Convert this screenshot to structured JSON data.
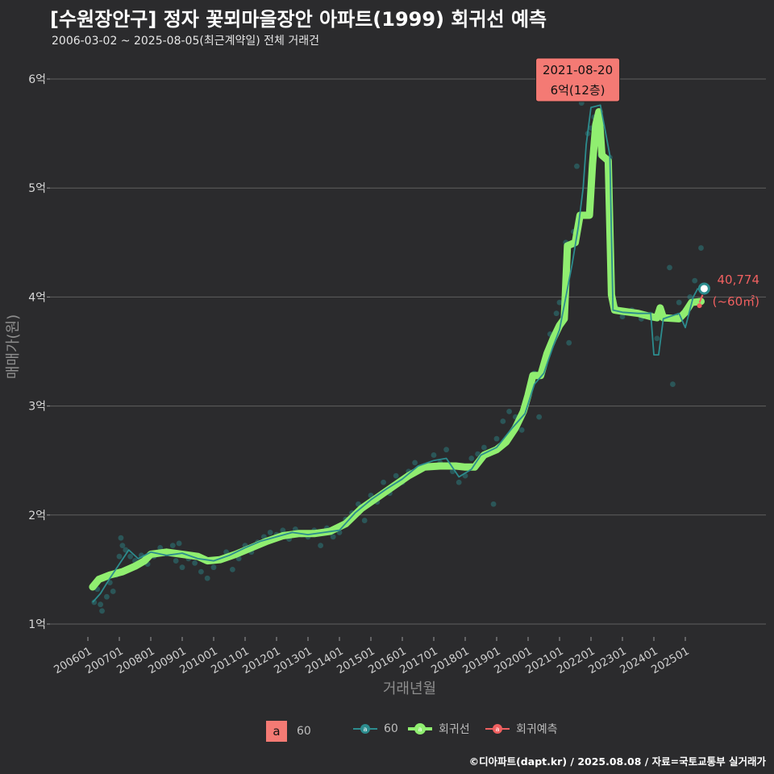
{
  "header": {
    "title": "[수원장안구] 정자 꽃뫼마을장안 아파트(1999) 회귀선 예측",
    "subtitle": "2006-03-02 ~ 2025-08-05(최근계약일) 전체 거래건"
  },
  "footer": {
    "credit": "©디아파트(dapt.kr) / 2025.08.08 / 자료=국토교통부 실거래가"
  },
  "legend": {
    "area_box_label": "a",
    "area_label": "60",
    "series1_label": "60",
    "series2_label": "회귀선",
    "series3_label": "회귀예측"
  },
  "colors": {
    "background": "#2b2b2d",
    "grid": "#5f5f5f",
    "trade_line": "#2c8c8e",
    "regression": "#90ee70",
    "prediction": "#f06060",
    "annotation_fill": "#f47a74"
  },
  "annotation": {
    "date": "2021-08-20",
    "price_text": "6억(12층)",
    "date_value": 2021.63,
    "price_value": 6.0
  },
  "last_point": {
    "value_text": "40,774",
    "area_text": "(~60㎡)",
    "x": 2025.6,
    "y": 4.077
  },
  "chart_data": {
    "type": "line",
    "title": "[수원장안구] 정자 꽃뫼마을장안 아파트(1999) 회귀선 예측",
    "subtitle": "2006-03-02 ~ 2025-08-05(최근계약일) 전체 거래건",
    "xlabel": "거래년월",
    "ylabel": "매매가(원)",
    "x_range": [
      2005.2,
      2027.3
    ],
    "ylim": [
      0.82,
      6.4
    ],
    "y_ticks": [
      1,
      2,
      3,
      4,
      5,
      6
    ],
    "y_tick_labels": [
      "1억",
      "2억",
      "3억",
      "4억",
      "5억",
      "6억"
    ],
    "x_ticks": [
      2006,
      2007,
      2008,
      2009,
      2010,
      2011,
      2012,
      2013,
      2014,
      2015,
      2016,
      2017,
      2018,
      2019,
      2020,
      2021,
      2022,
      2023,
      2024,
      2025
    ],
    "x_tick_labels": [
      "200601",
      "200701",
      "200801",
      "200901",
      "201001",
      "201101",
      "201201",
      "201301",
      "201401",
      "201501",
      "201601",
      "201701",
      "201801",
      "201901",
      "202001",
      "202101",
      "202201",
      "202301",
      "202401",
      "202501"
    ],
    "series": [
      {
        "name": "회귀선",
        "points": [
          [
            2006.15,
            1.34
          ],
          [
            2006.35,
            1.41
          ],
          [
            2006.7,
            1.45
          ],
          [
            2007.1,
            1.48
          ],
          [
            2007.5,
            1.53
          ],
          [
            2007.8,
            1.58
          ],
          [
            2008.0,
            1.64
          ],
          [
            2008.5,
            1.66
          ],
          [
            2009.0,
            1.64
          ],
          [
            2009.5,
            1.62
          ],
          [
            2009.8,
            1.58
          ],
          [
            2010.2,
            1.59
          ],
          [
            2010.7,
            1.64
          ],
          [
            2011.2,
            1.7
          ],
          [
            2011.7,
            1.76
          ],
          [
            2012.2,
            1.81
          ],
          [
            2012.7,
            1.83
          ],
          [
            2013.2,
            1.83
          ],
          [
            2013.7,
            1.85
          ],
          [
            2014.2,
            1.92
          ],
          [
            2014.7,
            2.06
          ],
          [
            2015.2,
            2.16
          ],
          [
            2015.7,
            2.26
          ],
          [
            2016.2,
            2.36
          ],
          [
            2016.7,
            2.44
          ],
          [
            2017.2,
            2.45
          ],
          [
            2017.7,
            2.45
          ],
          [
            2018.0,
            2.44
          ],
          [
            2018.3,
            2.44
          ],
          [
            2018.6,
            2.55
          ],
          [
            2019.0,
            2.6
          ],
          [
            2019.3,
            2.67
          ],
          [
            2019.6,
            2.8
          ],
          [
            2019.85,
            2.95
          ],
          [
            2020.0,
            3.1
          ],
          [
            2020.15,
            3.28
          ],
          [
            2020.4,
            3.28
          ],
          [
            2020.6,
            3.48
          ],
          [
            2020.8,
            3.62
          ],
          [
            2021.0,
            3.74
          ],
          [
            2021.15,
            3.8
          ],
          [
            2021.25,
            4.47
          ],
          [
            2021.5,
            4.5
          ],
          [
            2021.65,
            4.75
          ],
          [
            2021.95,
            4.75
          ],
          [
            2022.05,
            5.22
          ],
          [
            2022.15,
            5.58
          ],
          [
            2022.25,
            5.7
          ],
          [
            2022.35,
            5.3
          ],
          [
            2022.55,
            5.25
          ],
          [
            2022.65,
            4.02
          ],
          [
            2022.75,
            3.88
          ],
          [
            2023.0,
            3.87
          ],
          [
            2023.5,
            3.85
          ],
          [
            2023.9,
            3.82
          ],
          [
            2024.1,
            3.81
          ],
          [
            2024.2,
            3.9
          ],
          [
            2024.3,
            3.81
          ],
          [
            2024.8,
            3.8
          ],
          [
            2025.0,
            3.86
          ],
          [
            2025.2,
            3.95
          ],
          [
            2025.5,
            3.96
          ]
        ]
      },
      {
        "name": "60",
        "points": [
          [
            2006.15,
            1.2
          ],
          [
            2006.4,
            1.28
          ],
          [
            2006.7,
            1.42
          ],
          [
            2007.0,
            1.55
          ],
          [
            2007.3,
            1.68
          ],
          [
            2007.6,
            1.6
          ],
          [
            2008.0,
            1.66
          ],
          [
            2008.5,
            1.63
          ],
          [
            2009.0,
            1.65
          ],
          [
            2009.5,
            1.6
          ],
          [
            2010.0,
            1.58
          ],
          [
            2010.5,
            1.63
          ],
          [
            2011.0,
            1.7
          ],
          [
            2011.5,
            1.76
          ],
          [
            2012.0,
            1.8
          ],
          [
            2012.5,
            1.84
          ],
          [
            2013.0,
            1.82
          ],
          [
            2013.5,
            1.84
          ],
          [
            2014.0,
            1.86
          ],
          [
            2014.5,
            2.02
          ],
          [
            2015.0,
            2.14
          ],
          [
            2015.5,
            2.24
          ],
          [
            2016.0,
            2.33
          ],
          [
            2016.5,
            2.45
          ],
          [
            2017.0,
            2.5
          ],
          [
            2017.4,
            2.52
          ],
          [
            2017.8,
            2.35
          ],
          [
            2018.2,
            2.42
          ],
          [
            2018.5,
            2.55
          ],
          [
            2019.0,
            2.62
          ],
          [
            2019.5,
            2.8
          ],
          [
            2019.9,
            2.93
          ],
          [
            2020.2,
            3.2
          ],
          [
            2020.5,
            3.3
          ],
          [
            2020.8,
            3.55
          ],
          [
            2021.0,
            3.7
          ],
          [
            2021.2,
            4.0
          ],
          [
            2021.4,
            4.3
          ],
          [
            2021.6,
            4.65
          ],
          [
            2021.75,
            5.0
          ],
          [
            2021.85,
            5.4
          ],
          [
            2022.0,
            5.74
          ],
          [
            2022.3,
            5.76
          ],
          [
            2022.6,
            5.3
          ],
          [
            2022.7,
            3.88
          ],
          [
            2023.0,
            3.86
          ],
          [
            2023.5,
            3.85
          ],
          [
            2023.9,
            3.85
          ],
          [
            2024.0,
            3.47
          ],
          [
            2024.15,
            3.47
          ],
          [
            2024.3,
            3.8
          ],
          [
            2024.8,
            3.85
          ],
          [
            2025.0,
            3.72
          ],
          [
            2025.25,
            4.0
          ],
          [
            2025.4,
            4.08
          ]
        ]
      },
      {
        "name": "회귀예측",
        "points": [
          [
            2025.45,
            3.95
          ],
          [
            2025.55,
            4.02
          ]
        ]
      }
    ],
    "scatter": {
      "name": "60",
      "points": [
        [
          2006.2,
          1.2
        ],
        [
          2006.3,
          1.32
        ],
        [
          2006.4,
          1.18
        ],
        [
          2006.45,
          1.12
        ],
        [
          2006.6,
          1.25
        ],
        [
          2006.7,
          1.38
        ],
        [
          2006.8,
          1.3
        ],
        [
          2006.9,
          1.45
        ],
        [
          2007.0,
          1.62
        ],
        [
          2007.05,
          1.79
        ],
        [
          2007.1,
          1.72
        ],
        [
          2007.2,
          1.68
        ],
        [
          2007.35,
          1.62
        ],
        [
          2007.5,
          1.58
        ],
        [
          2007.7,
          1.63
        ],
        [
          2007.9,
          1.55
        ],
        [
          2008.1,
          1.62
        ],
        [
          2008.3,
          1.7
        ],
        [
          2008.5,
          1.66
        ],
        [
          2008.7,
          1.72
        ],
        [
          2008.8,
          1.58
        ],
        [
          2008.9,
          1.74
        ],
        [
          2009.0,
          1.52
        ],
        [
          2009.2,
          1.6
        ],
        [
          2009.4,
          1.56
        ],
        [
          2009.6,
          1.48
        ],
        [
          2009.8,
          1.42
        ],
        [
          2010.0,
          1.52
        ],
        [
          2010.2,
          1.6
        ],
        [
          2010.4,
          1.66
        ],
        [
          2010.6,
          1.5
        ],
        [
          2010.8,
          1.6
        ],
        [
          2011.0,
          1.72
        ],
        [
          2011.2,
          1.66
        ],
        [
          2011.4,
          1.75
        ],
        [
          2011.6,
          1.8
        ],
        [
          2011.8,
          1.84
        ],
        [
          2012.0,
          1.82
        ],
        [
          2012.2,
          1.86
        ],
        [
          2012.4,
          1.78
        ],
        [
          2012.6,
          1.87
        ],
        [
          2012.8,
          1.82
        ],
        [
          2013.0,
          1.8
        ],
        [
          2013.2,
          1.86
        ],
        [
          2013.4,
          1.72
        ],
        [
          2013.6,
          1.88
        ],
        [
          2013.8,
          1.8
        ],
        [
          2014.0,
          1.84
        ],
        [
          2014.2,
          1.96
        ],
        [
          2014.4,
          2.02
        ],
        [
          2014.6,
          2.1
        ],
        [
          2014.8,
          1.95
        ],
        [
          2015.0,
          2.18
        ],
        [
          2015.2,
          2.12
        ],
        [
          2015.4,
          2.3
        ],
        [
          2015.6,
          2.2
        ],
        [
          2015.8,
          2.36
        ],
        [
          2016.0,
          2.3
        ],
        [
          2016.2,
          2.4
        ],
        [
          2016.4,
          2.48
        ],
        [
          2016.6,
          2.42
        ],
        [
          2016.8,
          2.46
        ],
        [
          2017.0,
          2.55
        ],
        [
          2017.2,
          2.48
        ],
        [
          2017.4,
          2.6
        ],
        [
          2017.6,
          2.4
        ],
        [
          2017.8,
          2.3
        ],
        [
          2018.0,
          2.36
        ],
        [
          2018.2,
          2.52
        ],
        [
          2018.4,
          2.56
        ],
        [
          2018.6,
          2.62
        ],
        [
          2018.8,
          2.58
        ],
        [
          2018.9,
          2.1
        ],
        [
          2019.0,
          2.7
        ],
        [
          2019.2,
          2.86
        ],
        [
          2019.4,
          2.95
        ],
        [
          2019.6,
          2.9
        ],
        [
          2019.8,
          2.78
        ],
        [
          2020.0,
          3.1
        ],
        [
          2020.2,
          3.3
        ],
        [
          2020.35,
          2.9
        ],
        [
          2020.5,
          3.4
        ],
        [
          2020.7,
          3.66
        ],
        [
          2020.9,
          3.85
        ],
        [
          2021.0,
          3.95
        ],
        [
          2021.2,
          4.5
        ],
        [
          2021.3,
          3.58
        ],
        [
          2021.45,
          4.6
        ],
        [
          2021.55,
          5.2
        ],
        [
          2021.63,
          6.0
        ],
        [
          2021.7,
          5.78
        ],
        [
          2021.8,
          5.9
        ],
        [
          2021.9,
          5.5
        ],
        [
          2022.0,
          5.55
        ],
        [
          2022.1,
          5.65
        ],
        [
          2022.3,
          5.3
        ],
        [
          2022.6,
          5.28
        ],
        [
          2022.8,
          3.9
        ],
        [
          2023.0,
          3.82
        ],
        [
          2023.3,
          3.88
        ],
        [
          2023.6,
          3.8
        ],
        [
          2023.9,
          3.84
        ],
        [
          2024.1,
          3.62
        ],
        [
          2024.3,
          3.82
        ],
        [
          2024.5,
          4.27
        ],
        [
          2024.6,
          3.2
        ],
        [
          2024.8,
          3.95
        ],
        [
          2025.0,
          3.88
        ],
        [
          2025.15,
          4.0
        ],
        [
          2025.3,
          4.15
        ],
        [
          2025.5,
          4.45
        ]
      ]
    }
  }
}
